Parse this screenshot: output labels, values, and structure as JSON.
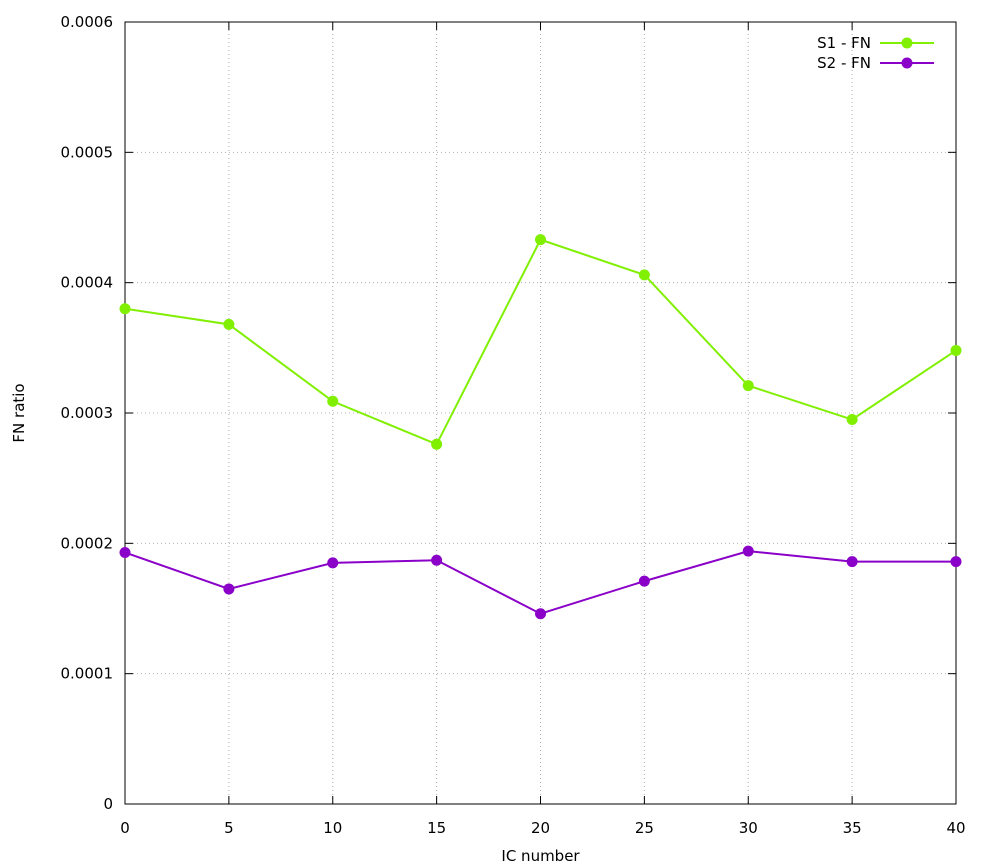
{
  "chart_data": {
    "type": "line",
    "title": "",
    "xlabel": "IC number",
    "ylabel": "FN ratio",
    "x": [
      0,
      5,
      10,
      15,
      20,
      25,
      30,
      35,
      40
    ],
    "xlim": [
      0,
      40
    ],
    "ylim": [
      0,
      0.0006
    ],
    "xticks": [
      "0",
      "5",
      "10",
      "15",
      "20",
      "25",
      "30",
      "35",
      "40"
    ],
    "yticks": [
      "0",
      "0.0001",
      "0.0002",
      "0.0003",
      "0.0004",
      "0.0005",
      "0.0006"
    ],
    "grid": true,
    "legend_position": "top-right",
    "series": [
      {
        "name": "S1 - FN",
        "color": "#80f000",
        "values": [
          0.00038,
          0.000368,
          0.000309,
          0.000276,
          0.000433,
          0.000406,
          0.000321,
          0.000295,
          0.000348
        ]
      },
      {
        "name": "S2 - FN",
        "color": "#8a00c8",
        "values": [
          0.000193,
          0.000165,
          0.000185,
          0.000187,
          0.000146,
          0.000171,
          0.000194,
          0.000186,
          0.000186
        ]
      }
    ]
  }
}
